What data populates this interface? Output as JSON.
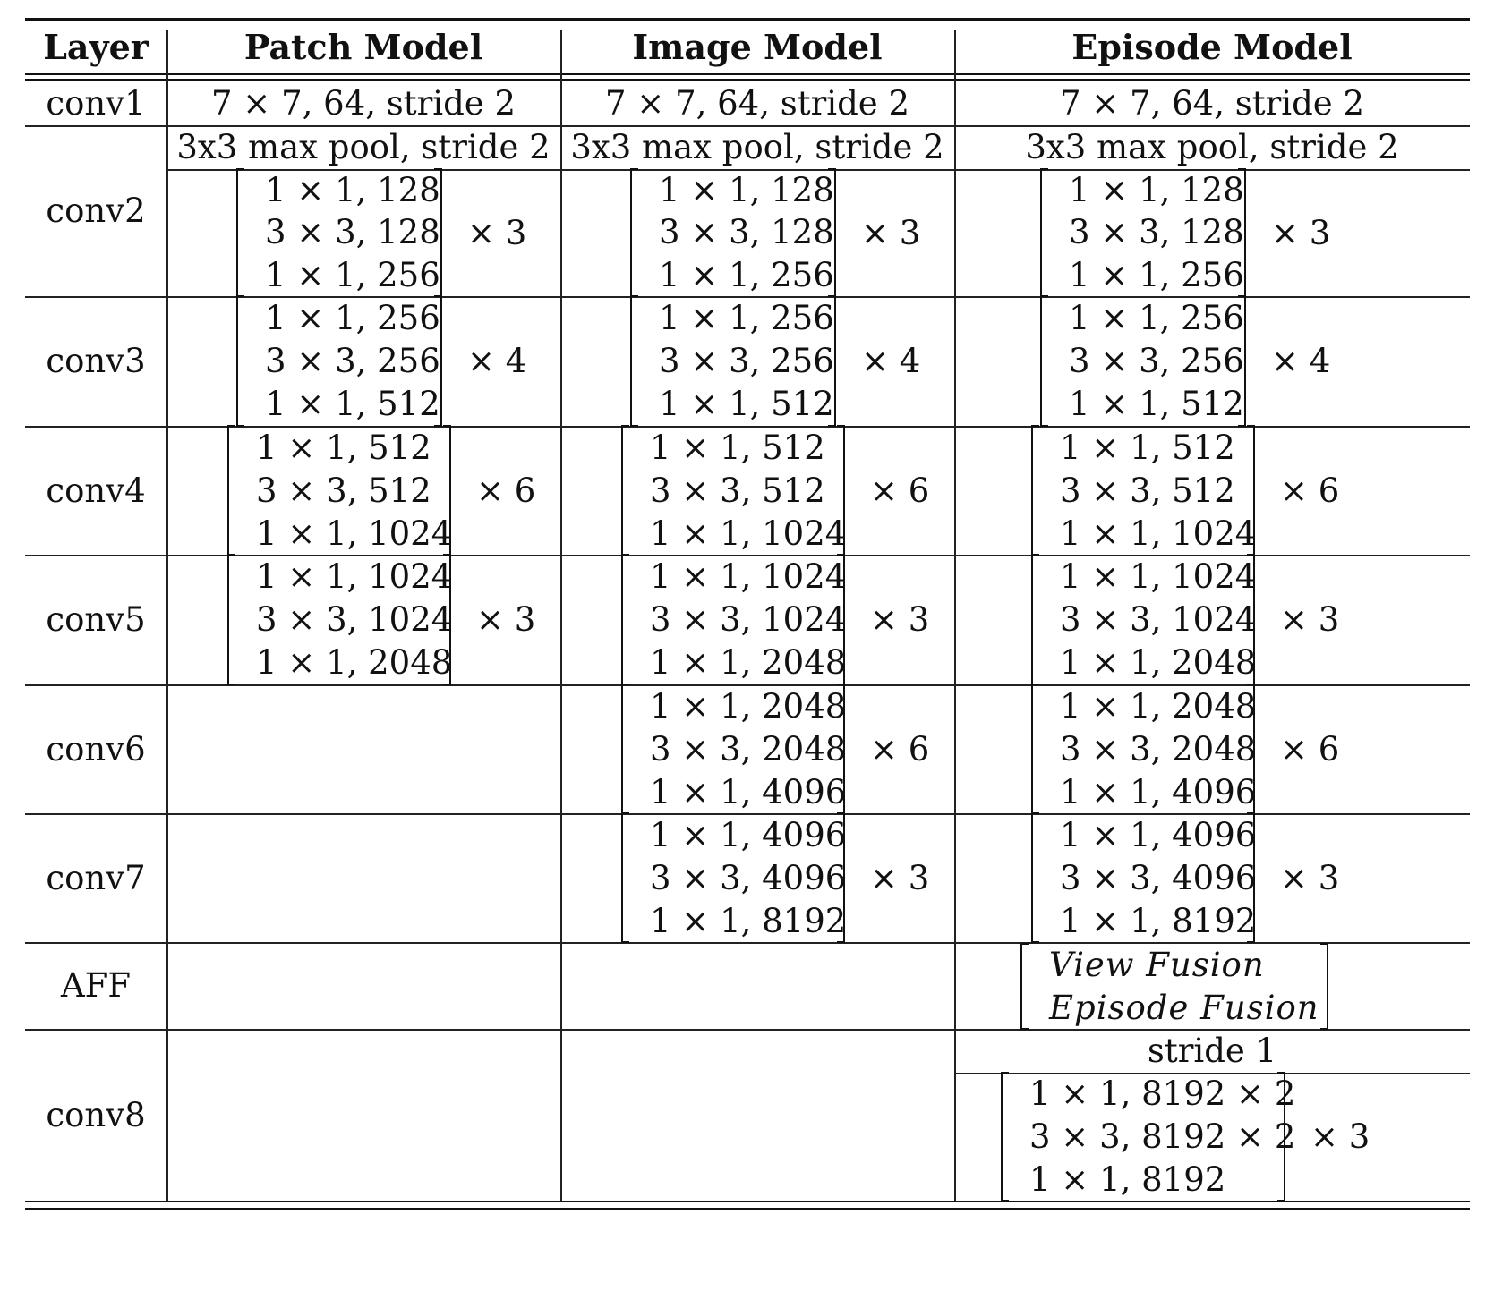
{
  "headers": {
    "layer": "Layer",
    "patch": "Patch Model",
    "image": "Image Model",
    "episode": "Episode Model"
  },
  "conv1": {
    "name": "conv1",
    "patch": "7 × 7, 64, stride 2",
    "image": "7 × 7, 64, stride 2",
    "episode": "7 × 7, 64, stride 2"
  },
  "pool": {
    "patch": "3x3 max pool, stride 2",
    "image": "3x3 max pool, stride 2",
    "episode": "3x3 max pool, stride 2"
  },
  "conv2": {
    "name": "conv2",
    "lines": [
      "1 × 1, 128",
      "3 × 3, 128",
      "1 × 1, 256"
    ],
    "repeat": "× 3"
  },
  "conv3": {
    "name": "conv3",
    "lines": [
      "1 × 1, 256",
      "3 × 3, 256",
      "1 × 1, 512"
    ],
    "repeat": "× 4"
  },
  "conv4": {
    "name": "conv4",
    "lines": [
      "1 × 1, 512",
      "3 × 3, 512",
      "1 × 1, 1024"
    ],
    "repeat": "× 6"
  },
  "conv5": {
    "name": "conv5",
    "lines": [
      "1 × 1, 1024",
      "3 × 3, 1024",
      "1 × 1, 2048"
    ],
    "repeat": "× 3"
  },
  "conv6": {
    "name": "conv6",
    "lines": [
      "1 × 1, 2048",
      "3 × 3, 2048",
      "1 × 1, 4096"
    ],
    "repeat": "× 6"
  },
  "conv7": {
    "name": "conv7",
    "lines": [
      "1 × 1, 4096",
      "3 × 3, 4096",
      "1 × 1, 8192"
    ],
    "repeat": "× 3"
  },
  "aff": {
    "name": "AFF",
    "lines": [
      "View Fusion",
      "Episode Fusion"
    ]
  },
  "conv8": {
    "name": "conv8",
    "stride": "stride 1",
    "lines": [
      "1 × 1, 8192 × 2",
      "3 × 3, 8192 × 2",
      "1 × 1, 8192"
    ],
    "repeat": "× 3"
  }
}
